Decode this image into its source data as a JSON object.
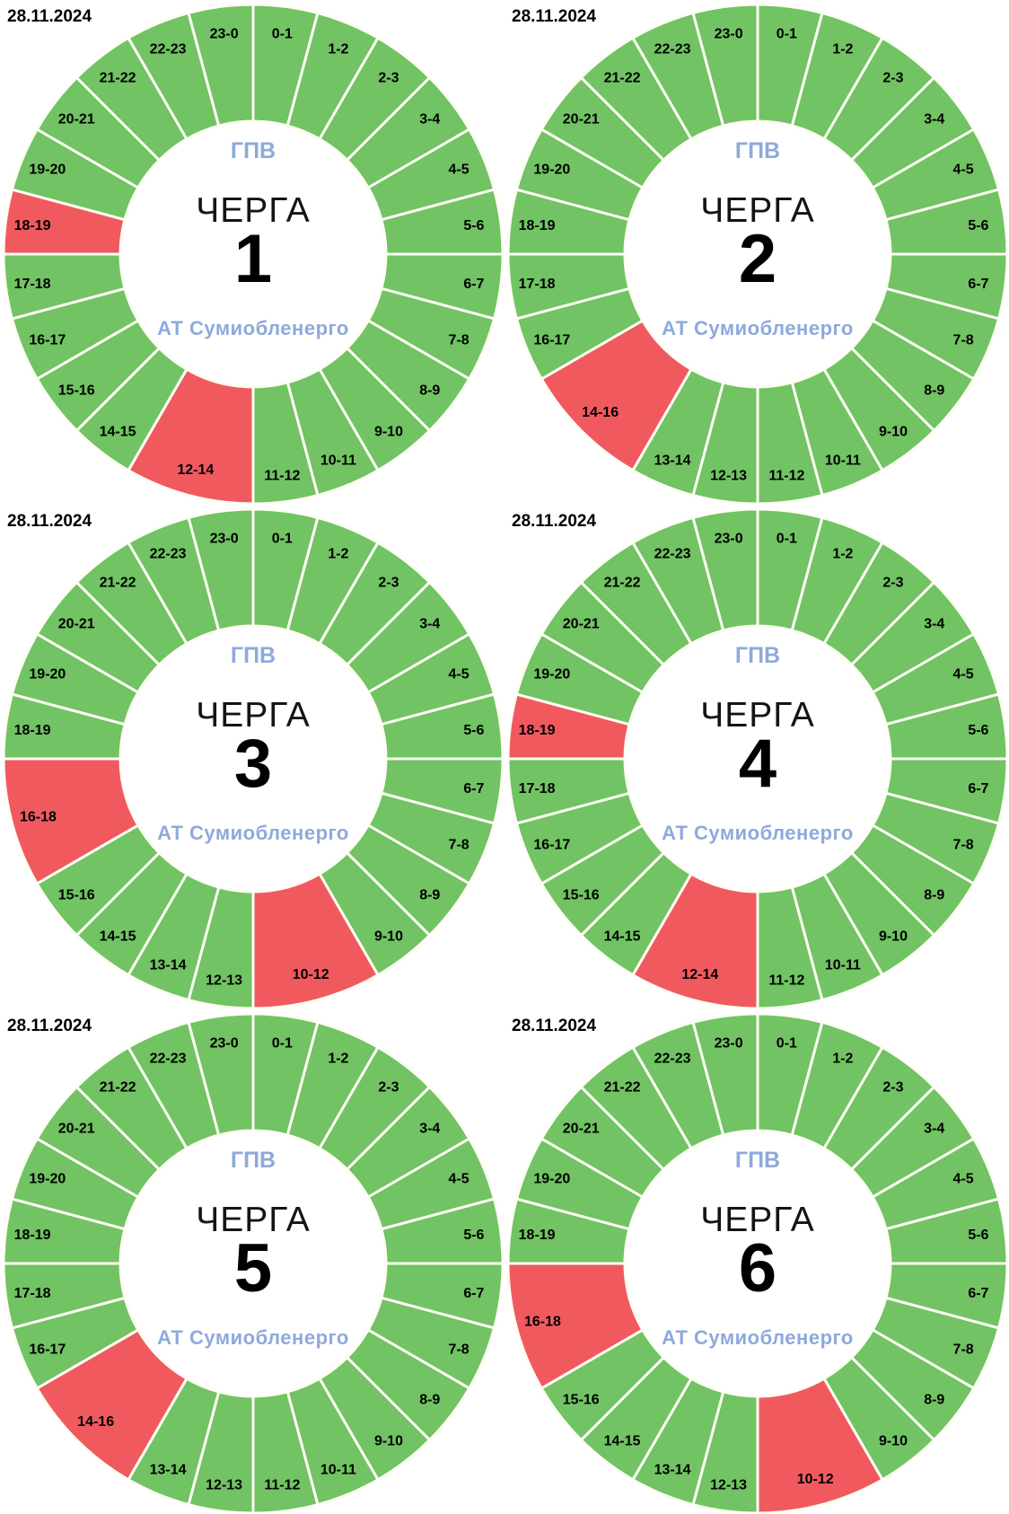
{
  "page_background": "#ffffff",
  "colors": {
    "power_on": "#71c363",
    "power_off": "#f05a5f",
    "divider": "#fdfdf4",
    "accent_text": "#8ea9db",
    "label_text": "#000000",
    "date_text": "#000000"
  },
  "chart_data": [
    {
      "type": "pie",
      "subtype": "donut_24h_schedule",
      "title": "ЧЕРГА 1",
      "date": "28.11.2024",
      "center": {
        "top_label": "ГПВ",
        "queue_word": "ЧЕРГА",
        "queue_number": "1",
        "company": "АТ Сумиобленерго"
      },
      "off_hours": [
        "12-14",
        "18-19"
      ],
      "segments": [
        {
          "label": "0-1",
          "start": 0,
          "end": 1,
          "status": "on"
        },
        {
          "label": "1-2",
          "start": 1,
          "end": 2,
          "status": "on"
        },
        {
          "label": "2-3",
          "start": 2,
          "end": 3,
          "status": "on"
        },
        {
          "label": "3-4",
          "start": 3,
          "end": 4,
          "status": "on"
        },
        {
          "label": "4-5",
          "start": 4,
          "end": 5,
          "status": "on"
        },
        {
          "label": "5-6",
          "start": 5,
          "end": 6,
          "status": "on"
        },
        {
          "label": "6-7",
          "start": 6,
          "end": 7,
          "status": "on"
        },
        {
          "label": "7-8",
          "start": 7,
          "end": 8,
          "status": "on"
        },
        {
          "label": "8-9",
          "start": 8,
          "end": 9,
          "status": "on"
        },
        {
          "label": "9-10",
          "start": 9,
          "end": 10,
          "status": "on"
        },
        {
          "label": "10-11",
          "start": 10,
          "end": 11,
          "status": "on"
        },
        {
          "label": "11-12",
          "start": 11,
          "end": 12,
          "status": "on"
        },
        {
          "label": "12-14",
          "start": 12,
          "end": 14,
          "status": "off"
        },
        {
          "label": "14-15",
          "start": 14,
          "end": 15,
          "status": "on"
        },
        {
          "label": "15-16",
          "start": 15,
          "end": 16,
          "status": "on"
        },
        {
          "label": "16-17",
          "start": 16,
          "end": 17,
          "status": "on"
        },
        {
          "label": "17-18",
          "start": 17,
          "end": 18,
          "status": "on"
        },
        {
          "label": "18-19",
          "start": 18,
          "end": 19,
          "status": "off"
        },
        {
          "label": "19-20",
          "start": 19,
          "end": 20,
          "status": "on"
        },
        {
          "label": "20-21",
          "start": 20,
          "end": 21,
          "status": "on"
        },
        {
          "label": "21-22",
          "start": 21,
          "end": 22,
          "status": "on"
        },
        {
          "label": "22-23",
          "start": 22,
          "end": 23,
          "status": "on"
        },
        {
          "label": "23-0",
          "start": 23,
          "end": 24,
          "status": "on"
        }
      ]
    },
    {
      "type": "pie",
      "subtype": "donut_24h_schedule",
      "title": "ЧЕРГА 2",
      "date": "28.11.2024",
      "center": {
        "top_label": "ГПВ",
        "queue_word": "ЧЕРГА",
        "queue_number": "2",
        "company": "АТ Сумиобленерго"
      },
      "off_hours": [
        "14-16"
      ],
      "segments": [
        {
          "label": "0-1",
          "start": 0,
          "end": 1,
          "status": "on"
        },
        {
          "label": "1-2",
          "start": 1,
          "end": 2,
          "status": "on"
        },
        {
          "label": "2-3",
          "start": 2,
          "end": 3,
          "status": "on"
        },
        {
          "label": "3-4",
          "start": 3,
          "end": 4,
          "status": "on"
        },
        {
          "label": "4-5",
          "start": 4,
          "end": 5,
          "status": "on"
        },
        {
          "label": "5-6",
          "start": 5,
          "end": 6,
          "status": "on"
        },
        {
          "label": "6-7",
          "start": 6,
          "end": 7,
          "status": "on"
        },
        {
          "label": "7-8",
          "start": 7,
          "end": 8,
          "status": "on"
        },
        {
          "label": "8-9",
          "start": 8,
          "end": 9,
          "status": "on"
        },
        {
          "label": "9-10",
          "start": 9,
          "end": 10,
          "status": "on"
        },
        {
          "label": "10-11",
          "start": 10,
          "end": 11,
          "status": "on"
        },
        {
          "label": "11-12",
          "start": 11,
          "end": 12,
          "status": "on"
        },
        {
          "label": "12-13",
          "start": 12,
          "end": 13,
          "status": "on"
        },
        {
          "label": "13-14",
          "start": 13,
          "end": 14,
          "status": "on"
        },
        {
          "label": "14-16",
          "start": 14,
          "end": 16,
          "status": "off"
        },
        {
          "label": "16-17",
          "start": 16,
          "end": 17,
          "status": "on"
        },
        {
          "label": "17-18",
          "start": 17,
          "end": 18,
          "status": "on"
        },
        {
          "label": "18-19",
          "start": 18,
          "end": 19,
          "status": "on"
        },
        {
          "label": "19-20",
          "start": 19,
          "end": 20,
          "status": "on"
        },
        {
          "label": "20-21",
          "start": 20,
          "end": 21,
          "status": "on"
        },
        {
          "label": "21-22",
          "start": 21,
          "end": 22,
          "status": "on"
        },
        {
          "label": "22-23",
          "start": 22,
          "end": 23,
          "status": "on"
        },
        {
          "label": "23-0",
          "start": 23,
          "end": 24,
          "status": "on"
        }
      ]
    },
    {
      "type": "pie",
      "subtype": "donut_24h_schedule",
      "title": "ЧЕРГА 3",
      "date": "28.11.2024",
      "center": {
        "top_label": "ГПВ",
        "queue_word": "ЧЕРГА",
        "queue_number": "3",
        "company": "АТ Сумиобленерго"
      },
      "off_hours": [
        "10-12",
        "16-18"
      ],
      "segments": [
        {
          "label": "0-1",
          "start": 0,
          "end": 1,
          "status": "on"
        },
        {
          "label": "1-2",
          "start": 1,
          "end": 2,
          "status": "on"
        },
        {
          "label": "2-3",
          "start": 2,
          "end": 3,
          "status": "on"
        },
        {
          "label": "3-4",
          "start": 3,
          "end": 4,
          "status": "on"
        },
        {
          "label": "4-5",
          "start": 4,
          "end": 5,
          "status": "on"
        },
        {
          "label": "5-6",
          "start": 5,
          "end": 6,
          "status": "on"
        },
        {
          "label": "6-7",
          "start": 6,
          "end": 7,
          "status": "on"
        },
        {
          "label": "7-8",
          "start": 7,
          "end": 8,
          "status": "on"
        },
        {
          "label": "8-9",
          "start": 8,
          "end": 9,
          "status": "on"
        },
        {
          "label": "9-10",
          "start": 9,
          "end": 10,
          "status": "on"
        },
        {
          "label": "10-12",
          "start": 10,
          "end": 12,
          "status": "off"
        },
        {
          "label": "12-13",
          "start": 12,
          "end": 13,
          "status": "on"
        },
        {
          "label": "13-14",
          "start": 13,
          "end": 14,
          "status": "on"
        },
        {
          "label": "14-15",
          "start": 14,
          "end": 15,
          "status": "on"
        },
        {
          "label": "15-16",
          "start": 15,
          "end": 16,
          "status": "on"
        },
        {
          "label": "16-18",
          "start": 16,
          "end": 18,
          "status": "off"
        },
        {
          "label": "18-19",
          "start": 18,
          "end": 19,
          "status": "on"
        },
        {
          "label": "19-20",
          "start": 19,
          "end": 20,
          "status": "on"
        },
        {
          "label": "20-21",
          "start": 20,
          "end": 21,
          "status": "on"
        },
        {
          "label": "21-22",
          "start": 21,
          "end": 22,
          "status": "on"
        },
        {
          "label": "22-23",
          "start": 22,
          "end": 23,
          "status": "on"
        },
        {
          "label": "23-0",
          "start": 23,
          "end": 24,
          "status": "on"
        }
      ]
    },
    {
      "type": "pie",
      "subtype": "donut_24h_schedule",
      "title": "ЧЕРГА 4",
      "date": "28.11.2024",
      "center": {
        "top_label": "ГПВ",
        "queue_word": "ЧЕРГА",
        "queue_number": "4",
        "company": "АТ Сумиобленерго"
      },
      "off_hours": [
        "12-14",
        "18-19"
      ],
      "segments": [
        {
          "label": "0-1",
          "start": 0,
          "end": 1,
          "status": "on"
        },
        {
          "label": "1-2",
          "start": 1,
          "end": 2,
          "status": "on"
        },
        {
          "label": "2-3",
          "start": 2,
          "end": 3,
          "status": "on"
        },
        {
          "label": "3-4",
          "start": 3,
          "end": 4,
          "status": "on"
        },
        {
          "label": "4-5",
          "start": 4,
          "end": 5,
          "status": "on"
        },
        {
          "label": "5-6",
          "start": 5,
          "end": 6,
          "status": "on"
        },
        {
          "label": "6-7",
          "start": 6,
          "end": 7,
          "status": "on"
        },
        {
          "label": "7-8",
          "start": 7,
          "end": 8,
          "status": "on"
        },
        {
          "label": "8-9",
          "start": 8,
          "end": 9,
          "status": "on"
        },
        {
          "label": "9-10",
          "start": 9,
          "end": 10,
          "status": "on"
        },
        {
          "label": "10-11",
          "start": 10,
          "end": 11,
          "status": "on"
        },
        {
          "label": "11-12",
          "start": 11,
          "end": 12,
          "status": "on"
        },
        {
          "label": "12-14",
          "start": 12,
          "end": 14,
          "status": "off"
        },
        {
          "label": "14-15",
          "start": 14,
          "end": 15,
          "status": "on"
        },
        {
          "label": "15-16",
          "start": 15,
          "end": 16,
          "status": "on"
        },
        {
          "label": "16-17",
          "start": 16,
          "end": 17,
          "status": "on"
        },
        {
          "label": "17-18",
          "start": 17,
          "end": 18,
          "status": "on"
        },
        {
          "label": "18-19",
          "start": 18,
          "end": 19,
          "status": "off"
        },
        {
          "label": "19-20",
          "start": 19,
          "end": 20,
          "status": "on"
        },
        {
          "label": "20-21",
          "start": 20,
          "end": 21,
          "status": "on"
        },
        {
          "label": "21-22",
          "start": 21,
          "end": 22,
          "status": "on"
        },
        {
          "label": "22-23",
          "start": 22,
          "end": 23,
          "status": "on"
        },
        {
          "label": "23-0",
          "start": 23,
          "end": 24,
          "status": "on"
        }
      ]
    },
    {
      "type": "pie",
      "subtype": "donut_24h_schedule",
      "title": "ЧЕРГА 5",
      "date": "28.11.2024",
      "center": {
        "top_label": "ГПВ",
        "queue_word": "ЧЕРГА",
        "queue_number": "5",
        "company": "АТ Сумиобленерго"
      },
      "off_hours": [
        "14-16"
      ],
      "segments": [
        {
          "label": "0-1",
          "start": 0,
          "end": 1,
          "status": "on"
        },
        {
          "label": "1-2",
          "start": 1,
          "end": 2,
          "status": "on"
        },
        {
          "label": "2-3",
          "start": 2,
          "end": 3,
          "status": "on"
        },
        {
          "label": "3-4",
          "start": 3,
          "end": 4,
          "status": "on"
        },
        {
          "label": "4-5",
          "start": 4,
          "end": 5,
          "status": "on"
        },
        {
          "label": "5-6",
          "start": 5,
          "end": 6,
          "status": "on"
        },
        {
          "label": "6-7",
          "start": 6,
          "end": 7,
          "status": "on"
        },
        {
          "label": "7-8",
          "start": 7,
          "end": 8,
          "status": "on"
        },
        {
          "label": "8-9",
          "start": 8,
          "end": 9,
          "status": "on"
        },
        {
          "label": "9-10",
          "start": 9,
          "end": 10,
          "status": "on"
        },
        {
          "label": "10-11",
          "start": 10,
          "end": 11,
          "status": "on"
        },
        {
          "label": "11-12",
          "start": 11,
          "end": 12,
          "status": "on"
        },
        {
          "label": "12-13",
          "start": 12,
          "end": 13,
          "status": "on"
        },
        {
          "label": "13-14",
          "start": 13,
          "end": 14,
          "status": "on"
        },
        {
          "label": "14-16",
          "start": 14,
          "end": 16,
          "status": "off"
        },
        {
          "label": "16-17",
          "start": 16,
          "end": 17,
          "status": "on"
        },
        {
          "label": "17-18",
          "start": 17,
          "end": 18,
          "status": "on"
        },
        {
          "label": "18-19",
          "start": 18,
          "end": 19,
          "status": "on"
        },
        {
          "label": "19-20",
          "start": 19,
          "end": 20,
          "status": "on"
        },
        {
          "label": "20-21",
          "start": 20,
          "end": 21,
          "status": "on"
        },
        {
          "label": "21-22",
          "start": 21,
          "end": 22,
          "status": "on"
        },
        {
          "label": "22-23",
          "start": 22,
          "end": 23,
          "status": "on"
        },
        {
          "label": "23-0",
          "start": 23,
          "end": 24,
          "status": "on"
        }
      ]
    },
    {
      "type": "pie",
      "subtype": "donut_24h_schedule",
      "title": "ЧЕРГА 6",
      "date": "28.11.2024",
      "center": {
        "top_label": "ГПВ",
        "queue_word": "ЧЕРГА",
        "queue_number": "6",
        "company": "АТ Сумиобленерго"
      },
      "off_hours": [
        "10-12",
        "16-18"
      ],
      "segments": [
        {
          "label": "0-1",
          "start": 0,
          "end": 1,
          "status": "on"
        },
        {
          "label": "1-2",
          "start": 1,
          "end": 2,
          "status": "on"
        },
        {
          "label": "2-3",
          "start": 2,
          "end": 3,
          "status": "on"
        },
        {
          "label": "3-4",
          "start": 3,
          "end": 4,
          "status": "on"
        },
        {
          "label": "4-5",
          "start": 4,
          "end": 5,
          "status": "on"
        },
        {
          "label": "5-6",
          "start": 5,
          "end": 6,
          "status": "on"
        },
        {
          "label": "6-7",
          "start": 6,
          "end": 7,
          "status": "on"
        },
        {
          "label": "7-8",
          "start": 7,
          "end": 8,
          "status": "on"
        },
        {
          "label": "8-9",
          "start": 8,
          "end": 9,
          "status": "on"
        },
        {
          "label": "9-10",
          "start": 9,
          "end": 10,
          "status": "on"
        },
        {
          "label": "10-12",
          "start": 10,
          "end": 12,
          "status": "off"
        },
        {
          "label": "12-13",
          "start": 12,
          "end": 13,
          "status": "on"
        },
        {
          "label": "13-14",
          "start": 13,
          "end": 14,
          "status": "on"
        },
        {
          "label": "14-15",
          "start": 14,
          "end": 15,
          "status": "on"
        },
        {
          "label": "15-16",
          "start": 15,
          "end": 16,
          "status": "on"
        },
        {
          "label": "16-18",
          "start": 16,
          "end": 18,
          "status": "off"
        },
        {
          "label": "18-19",
          "start": 18,
          "end": 19,
          "status": "on"
        },
        {
          "label": "19-20",
          "start": 19,
          "end": 20,
          "status": "on"
        },
        {
          "label": "20-21",
          "start": 20,
          "end": 21,
          "status": "on"
        },
        {
          "label": "21-22",
          "start": 21,
          "end": 22,
          "status": "on"
        },
        {
          "label": "22-23",
          "start": 22,
          "end": 23,
          "status": "on"
        },
        {
          "label": "23-0",
          "start": 23,
          "end": 24,
          "status": "on"
        }
      ]
    }
  ]
}
